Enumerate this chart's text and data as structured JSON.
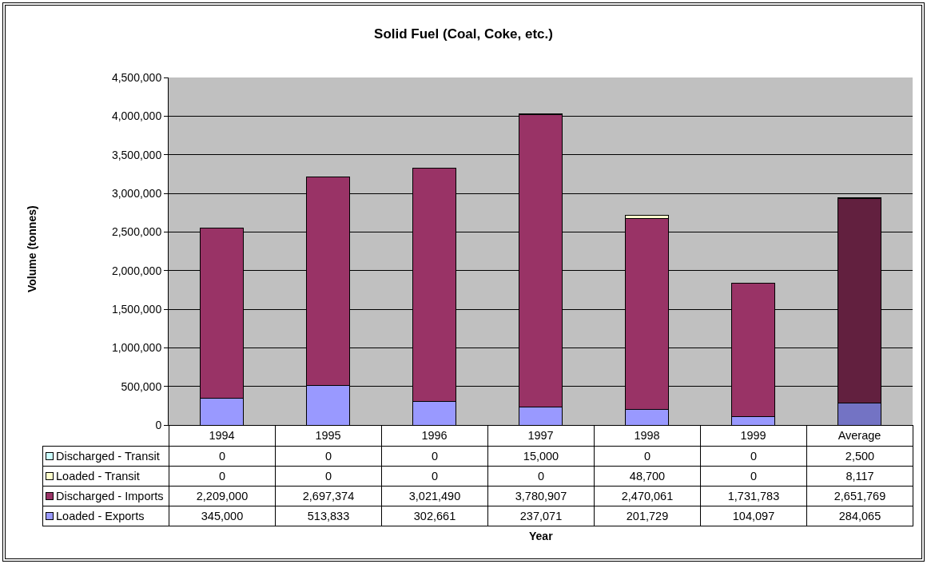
{
  "chart_data": {
    "type": "bar",
    "title": "Solid Fuel (Coal, Coke, etc.)",
    "annotations": [
      "Volume (tonnes)",
      "Year"
    ],
    "categories": [
      "1994",
      "1995",
      "1996",
      "1997",
      "1998",
      "1999",
      "Average"
    ],
    "series": [
      {
        "name": "Loaded - Exports",
        "color": "#9999ff",
        "colors": [
          "#9999ff",
          "#9999ff",
          "#9999ff",
          "#9999ff",
          "#9999ff",
          "#9999ff",
          "#7373c4"
        ],
        "values": [
          345000,
          513833,
          302661,
          237071,
          201729,
          104097,
          284065
        ],
        "value_labels": [
          "345,000",
          "513,833",
          "302,661",
          "237,071",
          "201,729",
          "104,097",
          "284,065"
        ]
      },
      {
        "name": "Discharged - Imports",
        "color": "#993366",
        "colors": [
          "#993366",
          "#993366",
          "#993366",
          "#993366",
          "#993366",
          "#993366",
          "#62203f"
        ],
        "values": [
          2209000,
          2697374,
          3021490,
          3780907,
          2470061,
          1731783,
          2651769
        ],
        "value_labels": [
          "2,209,000",
          "2,697,374",
          "3,021,490",
          "3,780,907",
          "2,470,061",
          "1,731,783",
          "2,651,769"
        ]
      },
      {
        "name": "Loaded - Transit",
        "color": "#ffffcc",
        "values": [
          0,
          0,
          0,
          0,
          48700,
          0,
          8117
        ],
        "value_labels": [
          "0",
          "0",
          "0",
          "0",
          "48,700",
          "0",
          "8,117"
        ]
      },
      {
        "name": "Discharged - Transit",
        "color": "#ccffff",
        "values": [
          0,
          0,
          0,
          15000,
          0,
          0,
          2500
        ],
        "value_labels": [
          "0",
          "0",
          "0",
          "15,000",
          "0",
          "0",
          "2,500"
        ]
      }
    ],
    "stacked": true,
    "ylim": [
      0,
      4500000
    ],
    "yticks": [
      0,
      {
        "value": 500000,
        "label": "500,000"
      },
      {
        "value": 1000000,
        "label": "1,000,000"
      },
      {
        "value": 1500000,
        "label": "1,500,000"
      },
      {
        "value": 2000000,
        "label": "2,000,000"
      },
      {
        "value": 2500000,
        "label": "2,500,000"
      },
      {
        "value": 3000000,
        "label": "3,000,000"
      },
      {
        "value": 3500000,
        "label": "3,500,000"
      },
      {
        "value": 4000000,
        "label": "4,000,000"
      },
      {
        "value": 4500000,
        "label": "4,500,000"
      }
    ],
    "grid": "y",
    "legend": "bottom left"
  }
}
